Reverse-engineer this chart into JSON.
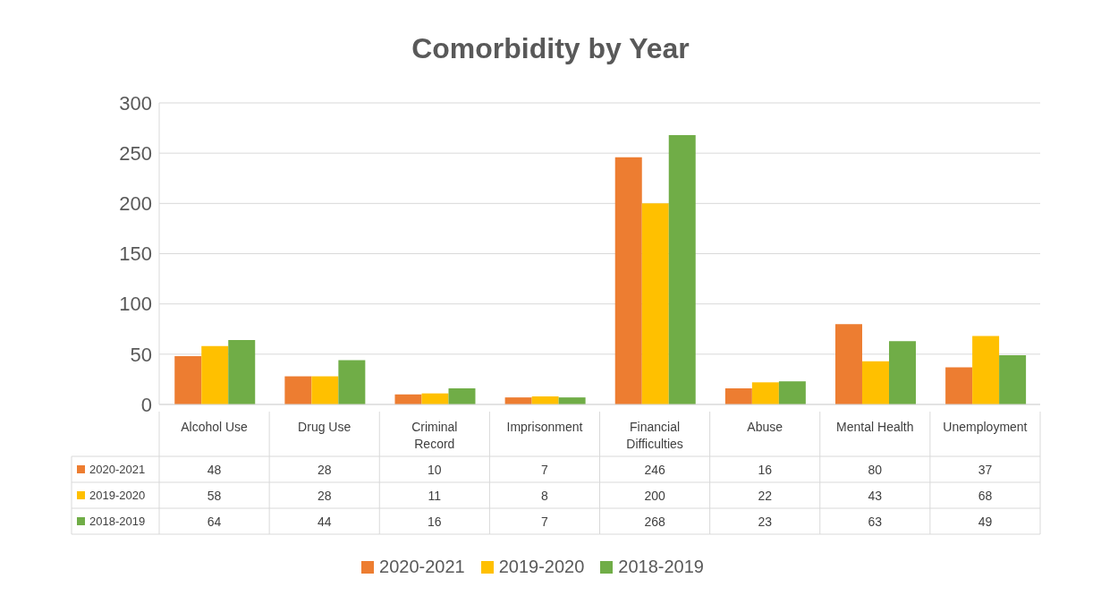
{
  "chart_data": {
    "type": "bar",
    "title": "Comorbidity by Year",
    "categories": [
      "Alcohol Use",
      "Drug Use",
      "Criminal Record",
      "Imprisonment",
      "Financial Difficulties",
      "Abuse",
      "Mental Health",
      "Unemployment"
    ],
    "series": [
      {
        "name": "2020-2021",
        "color": "#ed7d31",
        "values": [
          48,
          28,
          10,
          7,
          246,
          16,
          80,
          37
        ]
      },
      {
        "name": "2019-2020",
        "color": "#ffc000",
        "values": [
          58,
          28,
          11,
          8,
          200,
          22,
          43,
          68
        ]
      },
      {
        "name": "2018-2019",
        "color": "#70ad47",
        "values": [
          64,
          44,
          16,
          7,
          268,
          23,
          63,
          49
        ]
      }
    ],
    "ylim": [
      0,
      300
    ],
    "yticks": [
      0,
      50,
      100,
      150,
      200,
      250,
      300
    ],
    "grid": "y",
    "legend": "bottom",
    "data_labels": true
  }
}
